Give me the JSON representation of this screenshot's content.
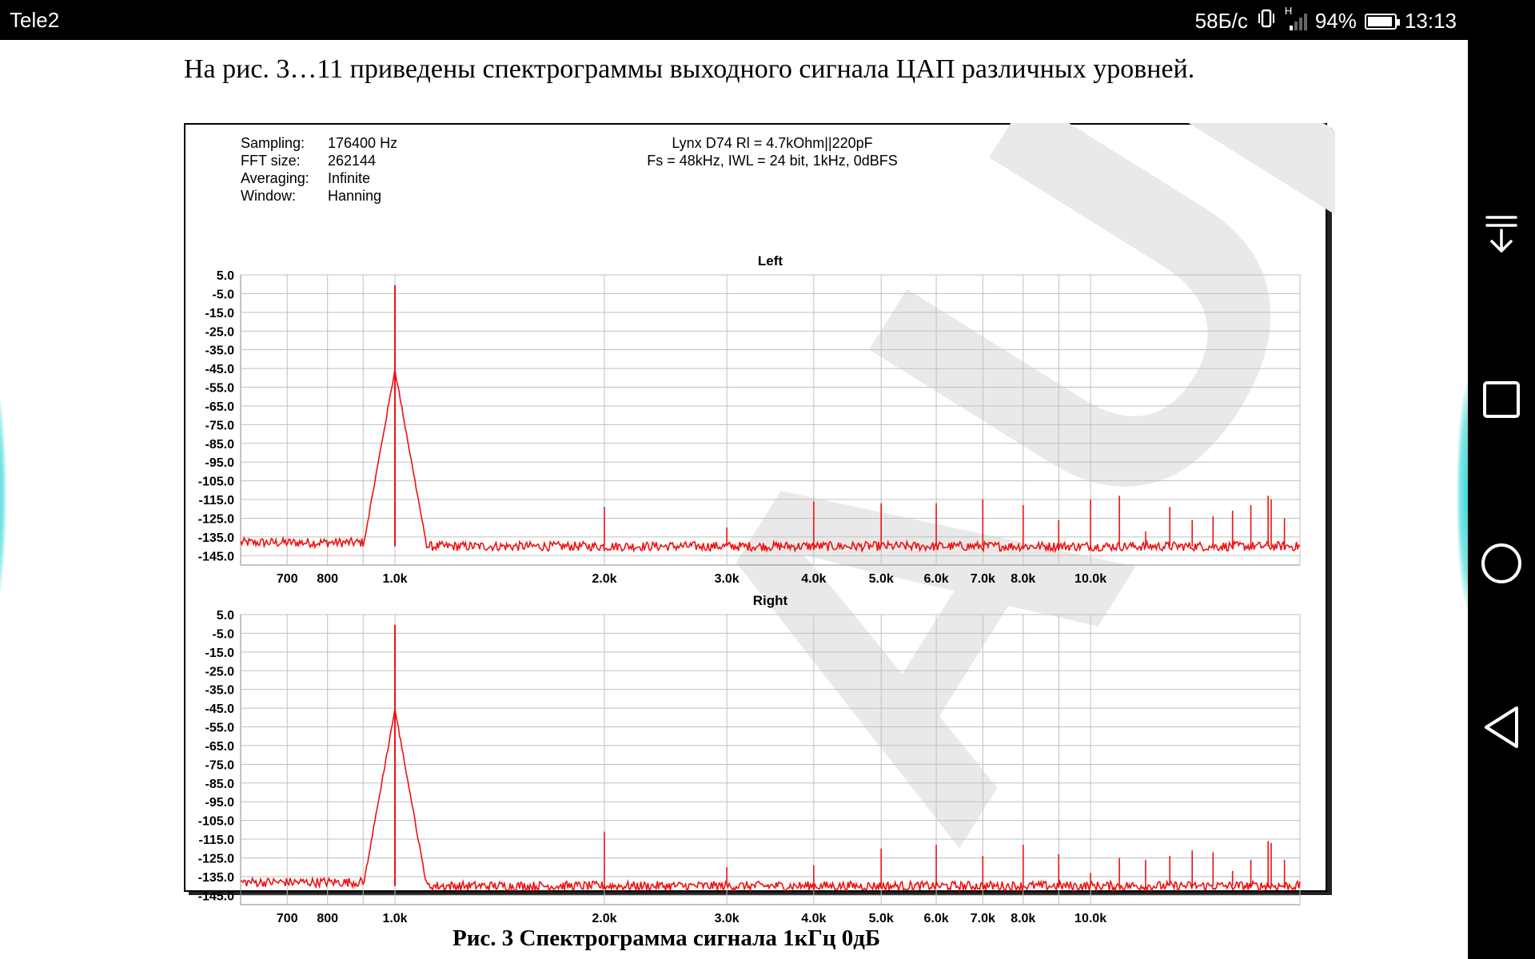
{
  "status_bar": {
    "carrier": "Tele2",
    "net_speed": "58Б/с",
    "signal_badge": "H",
    "battery_percent": "94%",
    "battery_level": 0.94,
    "time": "13:13"
  },
  "document": {
    "intro_text": "На рис. 3…11 приведены спектрограммы выходного сигнала ЦАП различных уровней.",
    "caption": "Рис. 3 Спектрограмма сигнала 1кГц 0дБ"
  },
  "nav_bar": {
    "buttons": [
      "pull-down-icon",
      "recents-square-icon",
      "home-circle-icon",
      "back-triangle-icon"
    ]
  },
  "colors": {
    "trace": "#ee1111",
    "grid": "#bfbfbf",
    "watermark": "#e9e9e9"
  },
  "chart_data": {
    "type": "line",
    "info": [
      {
        "key": "Sampling:",
        "value": "176400 Hz"
      },
      {
        "key": "FFT size:",
        "value": "262144"
      },
      {
        "key": "Averaging:",
        "value": "Infinite"
      },
      {
        "key": "Window:",
        "value": "Hanning"
      }
    ],
    "title": [
      "Lynx D74 Rl = 4.7kOhm||220pF",
      "Fs = 48kHz, IWL = 24 bit, 1kHz, 0dBFS"
    ],
    "x_scale": "log",
    "xlim": [
      600,
      20000
    ],
    "ylim": [
      -150,
      5
    ],
    "y_ticks": [
      "5.0",
      "-5.0",
      "-15.0",
      "-25.0",
      "-35.0",
      "-45.0",
      "-55.0",
      "-65.0",
      "-75.0",
      "-85.0",
      "-95.0",
      "-105.0",
      "-115.0",
      "-125.0",
      "-135.0",
      "-145.0"
    ],
    "x_ticks": [
      {
        "v": 700,
        "label": "700"
      },
      {
        "v": 800,
        "label": "800"
      },
      {
        "v": 1000,
        "label": "1.0k"
      },
      {
        "v": 2000,
        "label": "2.0k"
      },
      {
        "v": 3000,
        "label": "3.0k"
      },
      {
        "v": 4000,
        "label": "4.0k"
      },
      {
        "v": 5000,
        "label": "5.0k"
      },
      {
        "v": 6000,
        "label": "6.0k"
      },
      {
        "v": 7000,
        "label": "7.0k"
      },
      {
        "v": 8000,
        "label": "8.0k"
      },
      {
        "v": 10000,
        "label": "10.0k"
      }
    ],
    "x_gridlines": [
      700,
      800,
      900,
      1000,
      2000,
      3000,
      4000,
      5000,
      6000,
      7000,
      8000,
      9000,
      10000,
      20000
    ],
    "grid": true,
    "panels": [
      {
        "name": "Left",
        "fundamental": {
          "freq": 1000,
          "level": -0.5
        },
        "floor": -140,
        "harmonics": [
          {
            "freq": 2000,
            "level": -119
          },
          {
            "freq": 3000,
            "level": -130
          },
          {
            "freq": 4000,
            "level": -116
          },
          {
            "freq": 5000,
            "level": -117
          },
          {
            "freq": 6000,
            "level": -117
          },
          {
            "freq": 7000,
            "level": -115
          },
          {
            "freq": 8000,
            "level": -118
          },
          {
            "freq": 9000,
            "level": -126
          },
          {
            "freq": 10000,
            "level": -115
          },
          {
            "freq": 11000,
            "level": -113
          },
          {
            "freq": 12000,
            "level": -132
          },
          {
            "freq": 13000,
            "level": -119
          },
          {
            "freq": 14000,
            "level": -126
          },
          {
            "freq": 15000,
            "level": -124
          },
          {
            "freq": 16000,
            "level": -121
          },
          {
            "freq": 17000,
            "level": -118
          },
          {
            "freq": 18000,
            "level": -113
          },
          {
            "freq": 19000,
            "level": -125
          },
          {
            "freq": 20000,
            "level": -115
          }
        ]
      },
      {
        "name": "Right",
        "fundamental": {
          "freq": 1000,
          "level": -0.5
        },
        "floor": -140,
        "harmonics": [
          {
            "freq": 2000,
            "level": -111
          },
          {
            "freq": 3000,
            "level": -130
          },
          {
            "freq": 4000,
            "level": -129
          },
          {
            "freq": 5000,
            "level": -120
          },
          {
            "freq": 6000,
            "level": -118
          },
          {
            "freq": 7000,
            "level": -124
          },
          {
            "freq": 8000,
            "level": -118
          },
          {
            "freq": 9000,
            "level": -123
          },
          {
            "freq": 10000,
            "level": -133
          },
          {
            "freq": 11000,
            "level": -125
          },
          {
            "freq": 12000,
            "level": -126
          },
          {
            "freq": 13000,
            "level": -124
          },
          {
            "freq": 14000,
            "level": -121
          },
          {
            "freq": 15000,
            "level": -122
          },
          {
            "freq": 16000,
            "level": -132
          },
          {
            "freq": 17000,
            "level": -126
          },
          {
            "freq": 18000,
            "level": -116
          },
          {
            "freq": 19000,
            "level": -126
          },
          {
            "freq": 20000,
            "level": -117
          }
        ]
      }
    ]
  }
}
